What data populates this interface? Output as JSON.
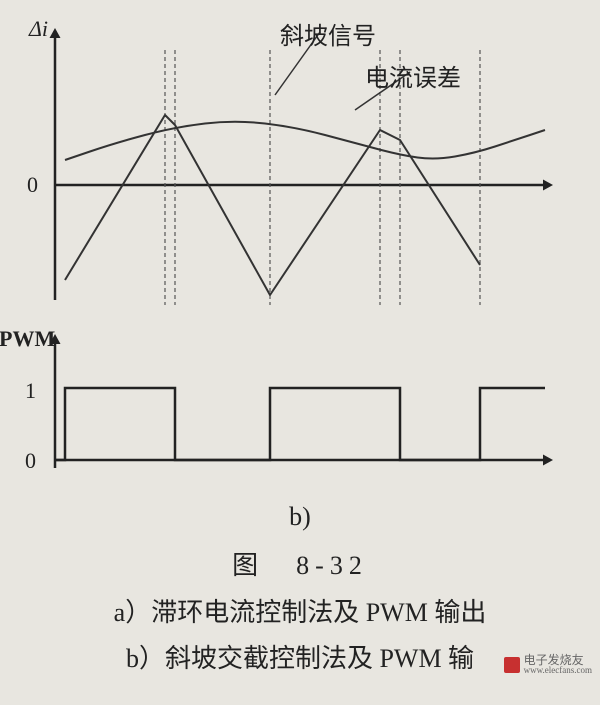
{
  "upper_chart": {
    "type": "line",
    "ylabel": "Δi",
    "ylabel_fontsize": 22,
    "zero_label": "0",
    "background_color": "#e8e6e0",
    "axis_color": "#222222",
    "axis_width": 2.5,
    "arrow_size": 10,
    "xlim": [
      0,
      500
    ],
    "ylim": [
      -120,
      120
    ],
    "baseline_y": 0,
    "curves": {
      "ramp_signal": {
        "label": "斜坡信号",
        "label_x": 235,
        "label_y": -4,
        "color": "#333333",
        "width": 2,
        "points": [
          [
            10,
            -95
          ],
          [
            110,
            70
          ],
          [
            120,
            60
          ],
          [
            215,
            -110
          ],
          [
            325,
            55
          ],
          [
            345,
            45
          ],
          [
            425,
            -80
          ]
        ]
      },
      "current_error": {
        "label": "电流误差",
        "label_x": 320,
        "label_y": 38,
        "color": "#333333",
        "width": 2,
        "points": [
          [
            10,
            25
          ],
          [
            60,
            42
          ],
          [
            120,
            58
          ],
          [
            180,
            65
          ],
          [
            240,
            58
          ],
          [
            300,
            42
          ],
          [
            345,
            30
          ],
          [
            380,
            25
          ],
          [
            420,
            32
          ],
          [
            460,
            45
          ],
          [
            490,
            55
          ]
        ],
        "smooth": true
      }
    },
    "leader_lines": [
      {
        "from": [
          275,
          12
        ],
        "to": [
          230,
          75
        ]
      },
      {
        "from": [
          365,
          52
        ],
        "to": [
          310,
          90
        ]
      }
    ],
    "dashed_verticals": {
      "color": "#555555",
      "width": 1.2,
      "dash": "4 3",
      "x_positions": [
        110,
        120,
        215,
        325,
        345,
        425
      ]
    }
  },
  "pwm_chart": {
    "type": "step",
    "ylabel": "PWM",
    "ylabel_fontsize": 22,
    "tick_1": "1",
    "tick_0": "0",
    "background_color": "#e8e6e0",
    "axis_color": "#222222",
    "axis_width": 2.5,
    "arrow_size": 10,
    "xlim": [
      0,
      500
    ],
    "ylim": [
      0,
      1
    ],
    "high_y": 1,
    "low_y": 0,
    "line_color": "#222222",
    "line_width": 2.5,
    "transitions": [
      {
        "x": 10,
        "level": 1
      },
      {
        "x": 110,
        "level": 1
      },
      {
        "x": 120,
        "level": 0
      },
      {
        "x": 215,
        "level": 0
      },
      {
        "x": 215,
        "level": 1
      },
      {
        "x": 325,
        "level": 1
      },
      {
        "x": 345,
        "level": 0
      },
      {
        "x": 425,
        "level": 0
      },
      {
        "x": 425,
        "level": 1
      },
      {
        "x": 490,
        "level": 1
      }
    ]
  },
  "captions": {
    "sub_b": "b)",
    "figure_number": "图　8-32",
    "line_a": "a）滞环电流控制法及 PWM 输出",
    "line_b": "b）斜坡交截控制法及 PWM 输",
    "fontsize": 26
  },
  "watermark": {
    "text": "电子发烧友",
    "url": "www.elecfans.com",
    "color": "#666666"
  }
}
